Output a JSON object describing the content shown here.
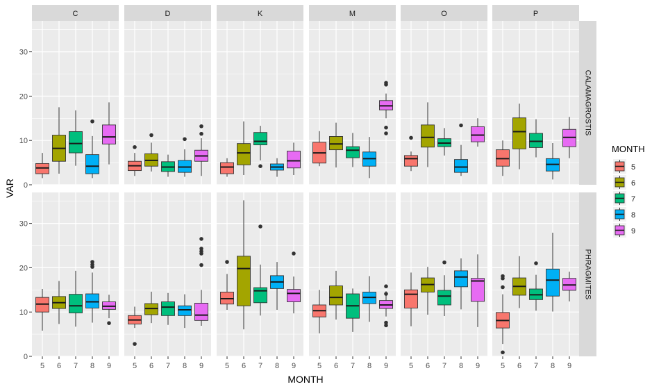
{
  "chart_data": {
    "type": "boxplot",
    "title": "",
    "xlabel": "MONTH",
    "ylabel": "VAR",
    "ylim": [
      0,
      37
    ],
    "yticks": [
      0,
      10,
      20,
      30
    ],
    "grid": true,
    "legend": {
      "title": "MONTH",
      "position": "right",
      "entries": [
        {
          "label": "5",
          "color": "#F8766D"
        },
        {
          "label": "6",
          "color": "#A3A500"
        },
        {
          "label": "7",
          "color": "#00BF7D"
        },
        {
          "label": "8",
          "color": "#00B0F6"
        },
        {
          "label": "9",
          "color": "#E76BF3"
        }
      ]
    },
    "facet_columns": [
      "C",
      "D",
      "K",
      "M",
      "O",
      "P"
    ],
    "facet_rows": [
      "CALAMAGROSTIS",
      "PHRAGMITES"
    ],
    "months": [
      "5",
      "6",
      "7",
      "8",
      "9"
    ],
    "series": [
      {
        "row": "CALAMAGROSTIS",
        "col": "C",
        "boxes": [
          {
            "month": "5",
            "min": 1.5,
            "q1": 2.5,
            "median": 3.8,
            "q3": 4.8,
            "max": 7.2,
            "outliers": []
          },
          {
            "month": "6",
            "min": 2.5,
            "q1": 5.3,
            "median": 8.2,
            "q3": 11.2,
            "max": 17.5,
            "outliers": []
          },
          {
            "month": "7",
            "min": 4.3,
            "q1": 7.2,
            "median": 9.3,
            "q3": 12.0,
            "max": 16.8,
            "outliers": []
          },
          {
            "month": "8",
            "min": 1.5,
            "q1": 2.5,
            "median": 4.2,
            "q3": 6.8,
            "max": 11.0,
            "outliers": [
              14.3
            ]
          },
          {
            "month": "9",
            "min": 4.6,
            "q1": 9.2,
            "median": 10.8,
            "q3": 13.5,
            "max": 18.6,
            "outliers": []
          }
        ]
      },
      {
        "row": "CALAMAGROSTIS",
        "col": "D",
        "boxes": [
          {
            "month": "5",
            "min": 2.0,
            "q1": 3.2,
            "median": 4.3,
            "q3": 5.3,
            "max": 7.2,
            "outliers": [
              8.5
            ]
          },
          {
            "month": "6",
            "min": 3.0,
            "q1": 4.2,
            "median": 5.5,
            "q3": 7.0,
            "max": 9.5,
            "outliers": [
              11.2
            ]
          },
          {
            "month": "7",
            "min": 1.8,
            "q1": 3.0,
            "median": 4.0,
            "q3": 5.2,
            "max": 6.8,
            "outliers": []
          },
          {
            "month": "8",
            "min": 1.8,
            "q1": 2.8,
            "median": 4.0,
            "q3": 5.5,
            "max": 8.0,
            "outliers": [
              10.3
            ]
          },
          {
            "month": "9",
            "min": 2.0,
            "q1": 5.3,
            "median": 6.5,
            "q3": 7.8,
            "max": 10.5,
            "outliers": [
              11.5,
              13.2
            ]
          }
        ]
      },
      {
        "row": "CALAMAGROSTIS",
        "col": "K",
        "boxes": [
          {
            "month": "5",
            "min": 1.8,
            "q1": 2.5,
            "median": 4.0,
            "q3": 5.0,
            "max": 6.0,
            "outliers": []
          },
          {
            "month": "6",
            "min": 2.2,
            "q1": 4.5,
            "median": 7.2,
            "q3": 9.3,
            "max": 14.3,
            "outliers": []
          },
          {
            "month": "7",
            "min": 5.5,
            "q1": 9.0,
            "median": 9.8,
            "q3": 11.8,
            "max": 13.3,
            "outliers": [
              4.2
            ]
          },
          {
            "month": "8",
            "min": 1.8,
            "q1": 3.3,
            "median": 4.0,
            "q3": 4.7,
            "max": 6.0,
            "outliers": []
          },
          {
            "month": "9",
            "min": 2.2,
            "q1": 3.8,
            "median": 5.4,
            "q3": 7.6,
            "max": 9.5,
            "outliers": []
          }
        ]
      },
      {
        "row": "CALAMAGROSTIS",
        "col": "M",
        "boxes": [
          {
            "month": "5",
            "min": 4.2,
            "q1": 4.9,
            "median": 7.2,
            "q3": 9.6,
            "max": 12.1,
            "outliers": []
          },
          {
            "month": "6",
            "min": 3.9,
            "q1": 7.9,
            "median": 9.2,
            "q3": 10.9,
            "max": 14.0,
            "outliers": []
          },
          {
            "month": "7",
            "min": 4.0,
            "q1": 6.1,
            "median": 7.8,
            "q3": 8.6,
            "max": 11.7,
            "outliers": []
          },
          {
            "month": "8",
            "min": 1.5,
            "q1": 4.2,
            "median": 5.9,
            "q3": 7.4,
            "max": 10.8,
            "outliers": []
          },
          {
            "month": "9",
            "min": 15.0,
            "q1": 16.9,
            "median": 17.8,
            "q3": 19.0,
            "max": 20.6,
            "outliers": [
              11.6,
              12.9,
              22.6,
              23.0
            ]
          }
        ]
      },
      {
        "row": "CALAMAGROSTIS",
        "col": "O",
        "boxes": [
          {
            "month": "5",
            "min": 3.1,
            "q1": 4.2,
            "median": 5.9,
            "q3": 6.6,
            "max": 7.5,
            "outliers": [
              10.6
            ]
          },
          {
            "month": "6",
            "min": 4.0,
            "q1": 8.5,
            "median": 10.7,
            "q3": 13.5,
            "max": 18.6,
            "outliers": []
          },
          {
            "month": "7",
            "min": 6.6,
            "q1": 8.6,
            "median": 9.4,
            "q3": 10.4,
            "max": 12.8,
            "outliers": []
          },
          {
            "month": "8",
            "min": 2.0,
            "q1": 2.8,
            "median": 4.0,
            "q3": 5.7,
            "max": 9.0,
            "outliers": [
              13.4
            ]
          },
          {
            "month": "9",
            "min": 8.6,
            "q1": 9.7,
            "median": 11.2,
            "q3": 13.1,
            "max": 15.0,
            "outliers": []
          }
        ]
      },
      {
        "row": "CALAMAGROSTIS",
        "col": "P",
        "boxes": [
          {
            "month": "5",
            "min": 2.0,
            "q1": 4.2,
            "median": 5.9,
            "q3": 7.9,
            "max": 10.0,
            "outliers": []
          },
          {
            "month": "6",
            "min": 3.5,
            "q1": 8.1,
            "median": 12.0,
            "q3": 15.1,
            "max": 18.3,
            "outliers": []
          },
          {
            "month": "7",
            "min": 6.2,
            "q1": 8.4,
            "median": 9.8,
            "q3": 11.6,
            "max": 14.8,
            "outliers": []
          },
          {
            "month": "8",
            "min": 1.2,
            "q1": 3.1,
            "median": 4.6,
            "q3": 5.9,
            "max": 9.4,
            "outliers": []
          },
          {
            "month": "9",
            "min": 6.0,
            "q1": 8.6,
            "median": 10.7,
            "q3": 12.5,
            "max": 15.3,
            "outliers": []
          }
        ]
      },
      {
        "row": "PHRAGMITES",
        "col": "C",
        "boxes": [
          {
            "month": "5",
            "min": 5.8,
            "q1": 10.0,
            "median": 11.8,
            "q3": 13.3,
            "max": 15.2,
            "outliers": []
          },
          {
            "month": "6",
            "min": 7.3,
            "q1": 10.8,
            "median": 12.1,
            "q3": 13.5,
            "max": 17.0,
            "outliers": []
          },
          {
            "month": "7",
            "min": 6.7,
            "q1": 9.8,
            "median": 11.4,
            "q3": 14.0,
            "max": 19.3,
            "outliers": []
          },
          {
            "month": "8",
            "min": 7.6,
            "q1": 10.9,
            "median": 12.3,
            "q3": 14.1,
            "max": 18.9,
            "outliers": [
              20.2,
              20.7,
              21.3
            ]
          },
          {
            "month": "9",
            "min": 8.6,
            "q1": 10.6,
            "median": 11.3,
            "q3": 12.3,
            "max": 13.9,
            "outliers": [
              7.5
            ]
          }
        ]
      },
      {
        "row": "PHRAGMITES",
        "col": "D",
        "boxes": [
          {
            "month": "5",
            "min": 6.4,
            "q1": 7.3,
            "median": 8.2,
            "q3": 9.2,
            "max": 11.2,
            "outliers": [
              2.8
            ]
          },
          {
            "month": "6",
            "min": 7.5,
            "q1": 9.4,
            "median": 10.8,
            "q3": 11.9,
            "max": 14.6,
            "outliers": []
          },
          {
            "month": "7",
            "min": 7.1,
            "q1": 9.2,
            "median": 11.1,
            "q3": 12.3,
            "max": 14.3,
            "outliers": []
          },
          {
            "month": "8",
            "min": 6.4,
            "q1": 9.2,
            "median": 10.5,
            "q3": 11.4,
            "max": 14.0,
            "outliers": []
          },
          {
            "month": "9",
            "min": 6.9,
            "q1": 8.1,
            "median": 9.3,
            "q3": 12.0,
            "max": 15.0,
            "outliers": [
              20.6,
              23.2,
              23.7,
              24.3,
              26.5
            ]
          }
        ]
      },
      {
        "row": "PHRAGMITES",
        "col": "K",
        "boxes": [
          {
            "month": "5",
            "min": 10.5,
            "q1": 11.8,
            "median": 13.0,
            "q3": 14.5,
            "max": 18.6,
            "outliers": [
              21.3
            ]
          },
          {
            "month": "6",
            "min": 6.1,
            "q1": 11.4,
            "median": 19.8,
            "q3": 22.6,
            "max": 35.2,
            "outliers": []
          },
          {
            "month": "7",
            "min": 9.2,
            "q1": 12.1,
            "median": 14.8,
            "q3": 15.5,
            "max": 20.7,
            "outliers": [
              29.3
            ]
          },
          {
            "month": "8",
            "min": 10.5,
            "q1": 15.3,
            "median": 16.8,
            "q3": 18.2,
            "max": 21.3,
            "outliers": []
          },
          {
            "month": "9",
            "min": 9.7,
            "q1": 12.3,
            "median": 14.2,
            "q3": 15.1,
            "max": 18.0,
            "outliers": [
              23.2
            ]
          }
        ]
      },
      {
        "row": "PHRAGMITES",
        "col": "M",
        "boxes": [
          {
            "month": "5",
            "min": 5.2,
            "q1": 8.9,
            "median": 10.3,
            "q3": 11.6,
            "max": 15.0,
            "outliers": []
          },
          {
            "month": "6",
            "min": 8.3,
            "q1": 11.6,
            "median": 13.3,
            "q3": 15.9,
            "max": 19.3,
            "outliers": []
          },
          {
            "month": "7",
            "min": 5.5,
            "q1": 8.6,
            "median": 11.4,
            "q3": 14.1,
            "max": 15.3,
            "outliers": []
          },
          {
            "month": "8",
            "min": 7.8,
            "q1": 11.9,
            "median": 13.3,
            "q3": 14.5,
            "max": 18.1,
            "outliers": []
          },
          {
            "month": "9",
            "min": 9.0,
            "q1": 10.8,
            "median": 11.6,
            "q3": 12.6,
            "max": 14.7,
            "outliers": [
              7.0,
              7.6,
              14.1,
              15.8
            ]
          }
        ]
      },
      {
        "row": "PHRAGMITES",
        "col": "O",
        "boxes": [
          {
            "month": "5",
            "min": 6.8,
            "q1": 10.9,
            "median": 14.0,
            "q3": 15.0,
            "max": 18.9,
            "outliers": []
          },
          {
            "month": "6",
            "min": 9.4,
            "q1": 14.5,
            "median": 16.2,
            "q3": 17.7,
            "max": 20.2,
            "outliers": []
          },
          {
            "month": "7",
            "min": 9.1,
            "q1": 11.6,
            "median": 13.6,
            "q3": 14.9,
            "max": 18.3,
            "outliers": [
              21.2
            ]
          },
          {
            "month": "8",
            "min": 10.6,
            "q1": 15.7,
            "median": 17.9,
            "q3": 19.3,
            "max": 22.1,
            "outliers": []
          },
          {
            "month": "9",
            "min": 6.6,
            "q1": 12.4,
            "median": 17.0,
            "q3": 17.6,
            "max": 23.0,
            "outliers": []
          }
        ]
      },
      {
        "row": "PHRAGMITES",
        "col": "P",
        "boxes": [
          {
            "month": "5",
            "min": 2.8,
            "q1": 6.4,
            "median": 8.1,
            "q3": 9.9,
            "max": 14.0,
            "outliers": [
              0.9,
              15.6,
              17.6,
              18.1
            ]
          },
          {
            "month": "6",
            "min": 10.9,
            "q1": 13.8,
            "median": 15.8,
            "q3": 17.7,
            "max": 22.6,
            "outliers": []
          },
          {
            "month": "7",
            "min": 10.3,
            "q1": 12.8,
            "median": 13.9,
            "q3": 15.2,
            "max": 18.4,
            "outliers": [
              21.0
            ]
          },
          {
            "month": "8",
            "min": 10.1,
            "q1": 13.6,
            "median": 17.2,
            "q3": 19.7,
            "max": 27.9,
            "outliers": []
          },
          {
            "month": "9",
            "min": 12.4,
            "q1": 14.9,
            "median": 16.1,
            "q3": 17.6,
            "max": 19.1,
            "outliers": []
          }
        ]
      }
    ]
  }
}
